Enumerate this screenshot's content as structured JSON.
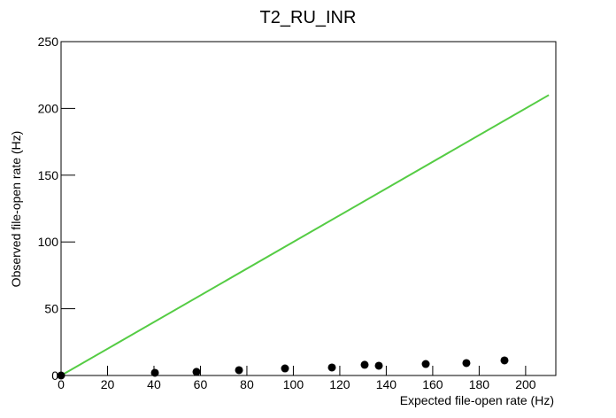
{
  "chart_data": {
    "type": "scatter",
    "title": "T2_RU_INR",
    "x_label": "Expected file-open rate (Hz)",
    "y_label": "Observed file-open rate (Hz)",
    "series": [
      {
        "type": "scatter",
        "color": "#000000",
        "x": [
          0,
          40.4,
          58.3,
          76.6,
          96.4,
          116.6,
          130.7,
          136.8,
          157,
          174.5,
          190.9
        ],
        "y": [
          0,
          2,
          2.7,
          4,
          5.3,
          6,
          8,
          7.3,
          8.6,
          9.3,
          11.3
        ]
      },
      {
        "type": "line",
        "color": "#55cc44",
        "x": [
          0,
          210
        ],
        "y": [
          0,
          210
        ]
      }
    ],
    "xlim": [
      0,
      213
    ],
    "ylim": [
      0,
      250
    ],
    "xticks": [
      0,
      20,
      40,
      60,
      80,
      100,
      120,
      140,
      160,
      180,
      200
    ],
    "yticks": [
      0,
      50,
      100,
      150,
      200,
      250
    ]
  }
}
